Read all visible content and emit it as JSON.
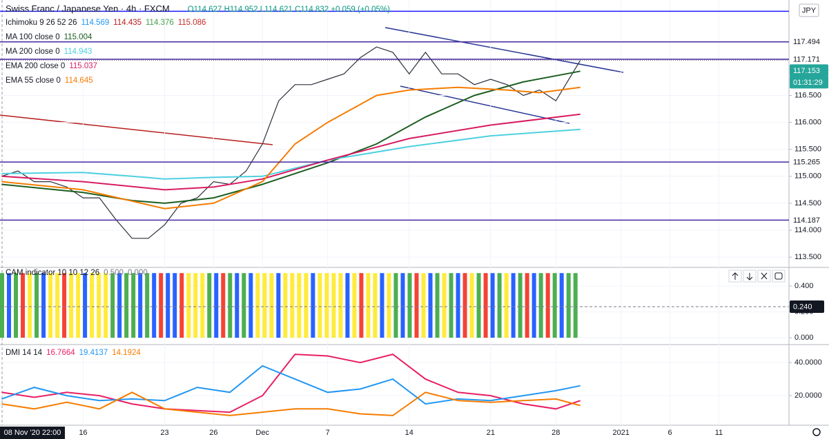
{
  "currency": "JPY",
  "cursor_time": "08 Nov '20  22:00",
  "chart_data": [
    {
      "type": "line",
      "title": "Swiss Franc / Japanese Yen · 4h · FXCM",
      "ohlc": "O114.627 H114.952 L114.621 C114.832 +0.059 (+0.05%)",
      "ichimoku": {
        "name": "Ichimoku 9 26 52 26",
        "values": [
          "114.569",
          "114.435",
          "114.376",
          "115.086"
        ],
        "colors": [
          "#2196f3",
          "#b71c1c",
          "#43a047",
          "#c62828"
        ]
      },
      "xlim": [
        -0.1,
        48.3
      ],
      "xticks": [
        {
          "value": 5,
          "label": "16"
        },
        {
          "value": 10,
          "label": "23"
        },
        {
          "value": 13,
          "label": "26"
        },
        {
          "value": 16,
          "label": "Dec"
        },
        {
          "value": 20,
          "label": "7"
        },
        {
          "value": 25,
          "label": "14"
        },
        {
          "value": 30,
          "label": "21"
        },
        {
          "value": 34,
          "label": "28"
        },
        {
          "value": 38,
          "label": "2021"
        },
        {
          "value": 41,
          "label": "6"
        },
        {
          "value": 44,
          "label": "11"
        }
      ],
      "ylim": [
        113.31,
        118.27
      ],
      "yticks": [
        {
          "value": 116.5,
          "label": "116.500"
        },
        {
          "value": 116,
          "label": "116.000"
        },
        {
          "value": 115.5,
          "label": "115.500"
        },
        {
          "value": 115,
          "label": "115.000"
        },
        {
          "value": 114.5,
          "label": "114.500"
        },
        {
          "value": 114,
          "label": "114.000"
        },
        {
          "value": 113.5,
          "label": "113.500"
        }
      ],
      "levels": [
        {
          "value": 118.06,
          "color": "#1a1aff"
        },
        {
          "value": 117.494,
          "label": "117.494",
          "color": "#4527a0"
        },
        {
          "value": 117.171,
          "label": "117.171",
          "color": "#4527a0"
        },
        {
          "value": 115.265,
          "label": "115.265",
          "color": "#4527a0"
        },
        {
          "value": 114.187,
          "label": "114.187",
          "color": "#4527a0"
        }
      ],
      "last_price": {
        "value": 117.153,
        "label": "117.153",
        "countdown": "01:31:29"
      },
      "series": [
        {
          "color": "#2a2e39",
          "x": [
            0,
            1,
            2,
            3,
            4,
            5,
            6,
            7,
            8,
            9,
            10,
            11,
            12,
            13,
            14,
            15,
            16,
            17,
            18,
            19,
            20,
            21,
            22,
            23,
            24,
            25,
            26,
            27,
            28,
            29,
            30,
            31,
            32,
            33,
            34,
            35,
            35.5
          ],
          "values": [
            115.0,
            115.1,
            114.9,
            114.9,
            114.8,
            114.6,
            114.6,
            114.2,
            113.85,
            113.85,
            114.1,
            114.5,
            114.6,
            114.9,
            114.85,
            115.1,
            115.6,
            116.4,
            116.7,
            116.7,
            116.8,
            116.9,
            117.2,
            117.4,
            117.3,
            116.9,
            117.3,
            116.9,
            116.9,
            116.7,
            116.8,
            116.7,
            116.5,
            116.6,
            116.4,
            116.9,
            117.15
          ]
        },
        {
          "name": "MA 100 close 0",
          "legend_value": "115.004",
          "color": "#1b5e20",
          "x": [
            0,
            5,
            8,
            10,
            13,
            16,
            20,
            23,
            26,
            29,
            32,
            35.5
          ],
          "values": [
            114.85,
            114.7,
            114.55,
            114.5,
            114.6,
            114.85,
            115.25,
            115.6,
            116.1,
            116.5,
            116.75,
            116.95
          ]
        },
        {
          "name": "MA 200 close 0",
          "legend_value": "114.943",
          "color": "#4dd0e1",
          "x": [
            0,
            5,
            8,
            10,
            13,
            16,
            20,
            25,
            30,
            35.5
          ],
          "values": [
            115.05,
            115.07,
            115.0,
            114.95,
            114.98,
            115.0,
            115.3,
            115.55,
            115.75,
            115.87
          ]
        },
        {
          "name": "EMA 200 close 0",
          "legend_value": "115.037",
          "color": "#d81b60",
          "x": [
            0,
            5,
            10,
            13,
            16,
            20,
            25,
            30,
            35.5
          ],
          "values": [
            115.0,
            114.9,
            114.75,
            114.8,
            114.95,
            115.3,
            115.7,
            115.95,
            116.15
          ]
        },
        {
          "name": "EMA 55 close 0",
          "legend_value": "114.645",
          "color": "#f57c00",
          "x": [
            0,
            5,
            10,
            13,
            16,
            18,
            20,
            23,
            25,
            28,
            31,
            33,
            35.5
          ],
          "values": [
            114.9,
            114.75,
            114.4,
            114.5,
            114.9,
            115.6,
            116.0,
            116.5,
            116.6,
            116.65,
            116.6,
            116.55,
            116.65
          ]
        }
      ]
    },
    {
      "type": "bar",
      "title": "CAM indicator 10 10 12 26",
      "legend_values": [
        "0.500",
        "0.000"
      ],
      "palette": {
        "g": "#4caf50",
        "b": "#2962ff",
        "y": "#ffeb3b",
        "r": "#f44336"
      },
      "colors": [
        "g",
        "b",
        "g",
        "r",
        "y",
        "g",
        "b",
        "y",
        "y",
        "r",
        "y",
        "y",
        "b",
        "y",
        "y",
        "y",
        "g",
        "b",
        "g",
        "g",
        "b",
        "g",
        "b",
        "r",
        "b",
        "b",
        "r",
        "y",
        "y",
        "y",
        "g",
        "b",
        "r",
        "g",
        "b",
        "g",
        "b",
        "y",
        "y",
        "y",
        "b",
        "y",
        "y",
        "y",
        "y",
        "b",
        "y",
        "y",
        "y",
        "y",
        "b",
        "y",
        "r",
        "y",
        "y",
        "b",
        "y",
        "g",
        "b",
        "g",
        "r",
        "y",
        "b",
        "g",
        "y",
        "g",
        "b",
        "r",
        "y",
        "g",
        "r",
        "b",
        "g",
        "y",
        "b",
        "g",
        "r",
        "b",
        "g",
        "r",
        "g",
        "b",
        "g",
        "g"
      ],
      "values": [
        0.5,
        0.5,
        0.5,
        0.5,
        0.5,
        0.5,
        0.5,
        0.5,
        0.5,
        0.5,
        0.5,
        0.5,
        0.5,
        0.5,
        0.5,
        0.5,
        0.5,
        0.5,
        0.5,
        0.5,
        0.5,
        0.5,
        0.5,
        0.5,
        0.5,
        0.5,
        0.5,
        0.5,
        0.5,
        0.5,
        0.5,
        0.5,
        0.5,
        0.5,
        0.5,
        0.5,
        0.5,
        0.5,
        0.5,
        0.5,
        0.5,
        0.5,
        0.5,
        0.5,
        0.5,
        0.5,
        0.5,
        0.5,
        0.5,
        0.5,
        0.5,
        0.5,
        0.5,
        0.5,
        0.5,
        0.5,
        0.5,
        0.5,
        0.5,
        0.5,
        0.5,
        0.5,
        0.5,
        0.5,
        0.5,
        0.5,
        0.5,
        0.5,
        0.5,
        0.5,
        0.5,
        0.5,
        0.5,
        0.5,
        0.5,
        0.5,
        0.5,
        0.5,
        0.5,
        0.5,
        0.5,
        0.5,
        0.5,
        0.5
      ],
      "ylim": [
        -0.053,
        0.544
      ],
      "yticks": [
        {
          "value": 0.4,
          "label": "0.400"
        },
        {
          "value": 0.2,
          "label": "0.200"
        },
        {
          "value": 0,
          "label": "0.000"
        }
      ],
      "marker": {
        "value": 0.24,
        "label": "0.240"
      }
    },
    {
      "type": "line",
      "title": "DMI 14 14",
      "xlim": [
        -0.1,
        48.3
      ],
      "ylim": [
        4.2,
        48.8
      ],
      "yticks": [
        {
          "value": 40,
          "label": "40.0000"
        },
        {
          "value": 20,
          "label": "20.0000"
        }
      ],
      "series": [
        {
          "legend_value": "16.7664",
          "color": "#e91e63",
          "x": [
            0,
            2,
            4,
            6,
            8,
            10,
            12,
            14,
            16,
            18,
            20,
            22,
            24,
            26,
            28,
            30,
            32,
            34,
            35.5
          ],
          "values": [
            22,
            19,
            22,
            20,
            15,
            12,
            11,
            10,
            20,
            45,
            44,
            40,
            45,
            30,
            22,
            20,
            15,
            12,
            17
          ]
        },
        {
          "legend_value": "19.4137",
          "color": "#2196f3",
          "x": [
            0,
            2,
            4,
            6,
            8,
            10,
            12,
            14,
            16,
            18,
            20,
            22,
            24,
            26,
            28,
            30,
            32,
            34,
            35.5
          ],
          "values": [
            18,
            25,
            20,
            17,
            18,
            17,
            25,
            22,
            38,
            30,
            22,
            24,
            30,
            15,
            18,
            17,
            20,
            23,
            26
          ]
        },
        {
          "legend_value": "14.1924",
          "color": "#f57c00",
          "x": [
            0,
            2,
            4,
            6,
            8,
            10,
            12,
            14,
            16,
            18,
            20,
            22,
            24,
            26,
            28,
            30,
            32,
            34,
            35.5
          ],
          "values": [
            15,
            12,
            16,
            12,
            22,
            12,
            10,
            8,
            10,
            12,
            12,
            9,
            8,
            22,
            17,
            16,
            17,
            18,
            14
          ]
        }
      ]
    }
  ]
}
